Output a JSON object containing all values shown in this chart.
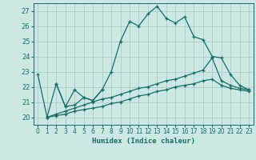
{
  "xlabel": "Humidex (Indice chaleur)",
  "background_color": "#cce8e5",
  "grid_color": "#aaccca",
  "line_color": "#1a6b60",
  "xlim": [
    -0.5,
    23.5
  ],
  "ylim": [
    19.5,
    27.5
  ],
  "yticks": [
    20,
    21,
    22,
    23,
    24,
    25,
    26,
    27
  ],
  "xticks": [
    0,
    1,
    2,
    3,
    4,
    5,
    6,
    7,
    8,
    9,
    10,
    11,
    12,
    13,
    14,
    15,
    16,
    17,
    18,
    19,
    20,
    21,
    22,
    23
  ],
  "lines": [
    {
      "x": [
        0,
        1,
        2,
        3,
        4,
        5,
        6,
        7
      ],
      "y": [
        22.8,
        20.0,
        22.2,
        20.7,
        21.8,
        21.3,
        21.1,
        21.8
      ]
    },
    {
      "x": [
        2,
        3,
        4,
        5,
        6,
        7,
        8,
        9,
        10,
        11,
        12,
        13,
        14,
        15,
        16,
        17,
        18,
        19,
        20,
        21,
        22,
        23
      ],
      "y": [
        22.2,
        20.7,
        20.8,
        21.3,
        21.1,
        21.8,
        23.0,
        25.0,
        26.3,
        26.0,
        26.8,
        27.3,
        26.5,
        26.2,
        26.6,
        25.3,
        25.1,
        24.0,
        23.9,
        22.8,
        22.1,
        21.8
      ]
    },
    {
      "x": [
        1,
        2,
        3,
        4,
        5,
        6,
        7,
        8,
        9,
        10,
        11,
        12,
        13,
        14,
        15,
        16,
        17,
        18,
        19,
        20,
        21,
        22,
        23
      ],
      "y": [
        20.0,
        20.1,
        20.2,
        20.4,
        20.5,
        20.6,
        20.7,
        20.9,
        21.0,
        21.2,
        21.4,
        21.5,
        21.7,
        21.8,
        22.0,
        22.1,
        22.2,
        22.4,
        22.5,
        22.1,
        21.9,
        21.8,
        21.7
      ]
    },
    {
      "x": [
        1,
        2,
        3,
        4,
        5,
        6,
        7,
        8,
        9,
        10,
        11,
        12,
        13,
        14,
        15,
        16,
        17,
        18,
        19,
        20,
        21,
        22,
        23
      ],
      "y": [
        20.0,
        20.2,
        20.4,
        20.6,
        20.8,
        21.0,
        21.2,
        21.3,
        21.5,
        21.7,
        21.9,
        22.0,
        22.2,
        22.4,
        22.5,
        22.7,
        22.9,
        23.1,
        23.9,
        22.4,
        22.1,
        21.9,
        21.8
      ]
    }
  ]
}
